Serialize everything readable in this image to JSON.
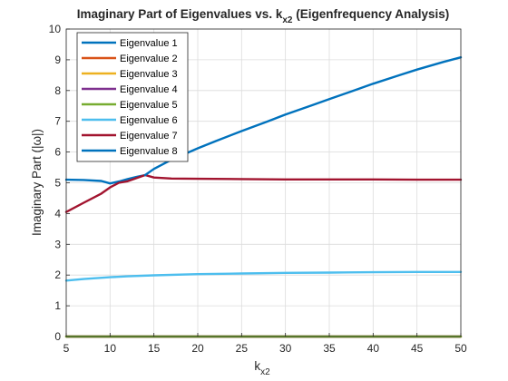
{
  "chart_data": {
    "type": "line",
    "title_main": "Imaginary Part of Eigenvalues vs. k",
    "title_sub": "x2",
    "title_tail": " (Eigenfrequency Analysis)",
    "xlabel_main": "k",
    "xlabel_sub": "x2",
    "ylabel": "Imaginary Part (|ω|)",
    "xlim": [
      5,
      50
    ],
    "ylim": [
      0,
      10
    ],
    "xticks": [
      "5",
      "10",
      "15",
      "20",
      "25",
      "30",
      "35",
      "40",
      "45",
      "50"
    ],
    "yticks": [
      "0",
      "1",
      "2",
      "3",
      "4",
      "5",
      "6",
      "7",
      "8",
      "9",
      "10"
    ],
    "grid": true,
    "legend_position": "top-left",
    "series": [
      {
        "name": "Eigenvalue 1",
        "color": "#0072BD",
        "x": [
          5,
          7,
          9,
          10,
          11,
          12,
          13,
          14
        ],
        "y": [
          5.1,
          5.09,
          5.06,
          4.98,
          5.04,
          5.12,
          5.19,
          5.25
        ]
      },
      {
        "name": "Eigenvalue 2",
        "color": "#D95319",
        "x": [
          5,
          50
        ],
        "y": [
          0,
          0
        ]
      },
      {
        "name": "Eigenvalue 3",
        "color": "#EDB120",
        "x": [
          5,
          50
        ],
        "y": [
          0,
          0
        ]
      },
      {
        "name": "Eigenvalue 4",
        "color": "#7E2F8E",
        "x": [
          5,
          50
        ],
        "y": [
          0,
          0
        ]
      },
      {
        "name": "Eigenvalue 5",
        "color": "#77AC30",
        "x": [
          5,
          50
        ],
        "y": [
          0,
          0
        ]
      },
      {
        "name": "Eigenvalue 6",
        "color": "#4DBEEE",
        "x": [
          5,
          7,
          10,
          12,
          15,
          20,
          25,
          30,
          35,
          40,
          45,
          50
        ],
        "y": [
          1.82,
          1.87,
          1.93,
          1.96,
          1.99,
          2.03,
          2.05,
          2.07,
          2.08,
          2.09,
          2.1,
          2.1
        ]
      },
      {
        "name": "Eigenvalue 7",
        "color": "#A2142F",
        "x": [
          5,
          7,
          9,
          10,
          11,
          12,
          13,
          14,
          15,
          17,
          20,
          25,
          30,
          35,
          40,
          45,
          50
        ],
        "y": [
          4.05,
          4.35,
          4.65,
          4.85,
          5.0,
          5.05,
          5.15,
          5.25,
          5.17,
          5.14,
          5.13,
          5.12,
          5.11,
          5.11,
          5.11,
          5.1,
          5.1
        ]
      },
      {
        "name": "Eigenvalue 8",
        "color": "#0072BD",
        "x": [
          14,
          15,
          17,
          20,
          22,
          25,
          28,
          30,
          33,
          35,
          38,
          40,
          43,
          45,
          48,
          50
        ],
        "y": [
          5.25,
          5.45,
          5.75,
          6.12,
          6.35,
          6.68,
          7.0,
          7.22,
          7.52,
          7.72,
          8.02,
          8.22,
          8.5,
          8.68,
          8.93,
          9.08
        ]
      }
    ]
  }
}
